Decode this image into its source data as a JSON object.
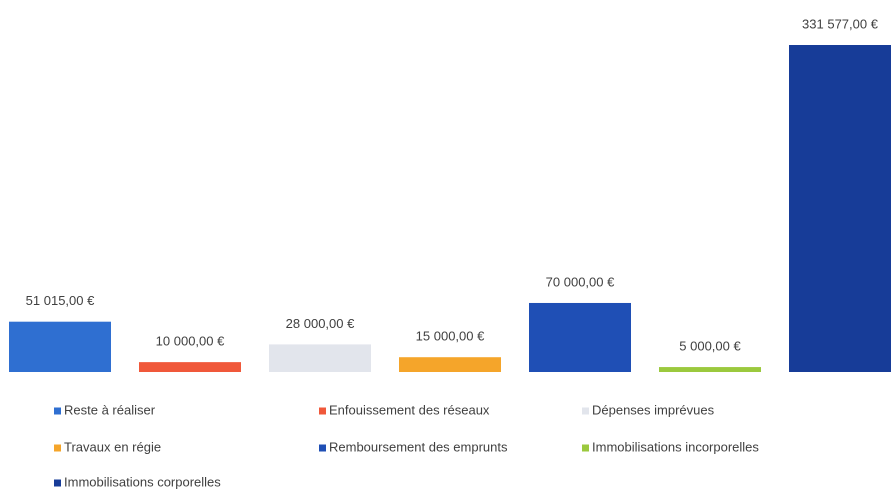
{
  "chart_data": {
    "type": "bar",
    "categories": [
      "Reste à réaliser",
      "Enfouissement des réseaux",
      "Dépenses imprévues",
      "Travaux en régie",
      "Remboursement des emprunts",
      "Immobilisations incorporelles",
      "Immobilisations corporelles"
    ],
    "values": [
      51015,
      10000,
      28000,
      15000,
      70000,
      5000,
      331577
    ],
    "value_labels": [
      "51 015,00 €",
      "10 000,00 €",
      "28 000,00 €",
      "15 000,00 €",
      "70 000,00 €",
      "5 000,00 €",
      "331 577,00 €"
    ],
    "colors": [
      "#2f6fd1",
      "#f0583a",
      "#e2e5ec",
      "#f5a52a",
      "#1f4fb5",
      "#9bc93e",
      "#173c98"
    ],
    "legend": "bottom"
  }
}
